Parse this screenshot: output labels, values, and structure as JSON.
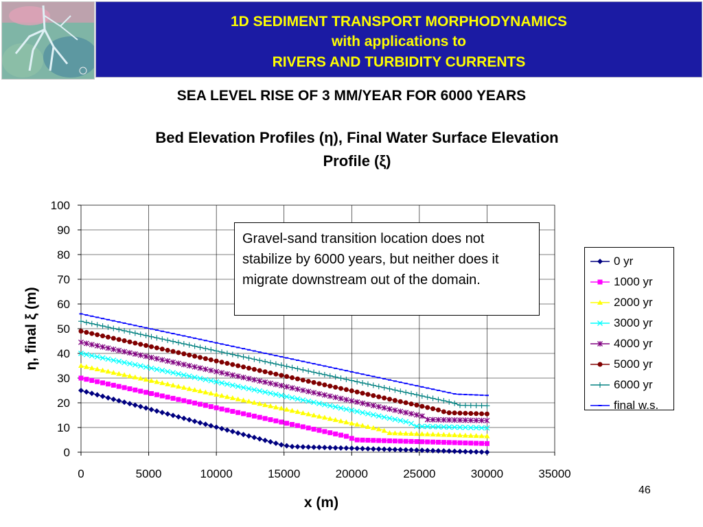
{
  "header": {
    "line1": "1D SEDIMENT TRANSPORT MORPHODYNAMICS",
    "line2": "with applications to",
    "line3": "RIVERS AND TURBIDITY CURRENTS"
  },
  "section_title": "SEA LEVEL RISE OF 3 MM/YEAR FOR 6000 YEARS",
  "page_number": "46",
  "annotation": "Gravel-sand transition location does not stabilize by 6000 years, but neither does it migrate downstream out of the domain.",
  "colors": {
    "header_bg": "#1b1ba3",
    "header_text": "#ffff00"
  },
  "chart_data": {
    "type": "line",
    "title_line1": "Bed Elevation Profiles (η), Final Water Surface Elevation",
    "title_line2": "Profile (ξ)",
    "xlabel": "x (m)",
    "ylabel": "η, final ξ (m)",
    "xlim": [
      0,
      35000
    ],
    "ylim": [
      0,
      100
    ],
    "xticks": [
      "0",
      "5000",
      "10000",
      "15000",
      "20000",
      "25000",
      "30000",
      "35000"
    ],
    "yticks": [
      "0",
      "10",
      "20",
      "30",
      "40",
      "50",
      "60",
      "70",
      "80",
      "90",
      "100"
    ],
    "grid": true,
    "legend_position": "right",
    "series": [
      {
        "name": "0 yr",
        "color": "#000080",
        "marker": "diamond",
        "points": [
          [
            0,
            25
          ],
          [
            14800,
            3
          ],
          [
            15500,
            2.3
          ],
          [
            30000,
            0
          ]
        ]
      },
      {
        "name": "1000 yr",
        "color": "#ff00ff",
        "marker": "square",
        "points": [
          [
            0,
            30
          ],
          [
            19800,
            6.2
          ],
          [
            20200,
            5
          ],
          [
            30000,
            3.5
          ]
        ]
      },
      {
        "name": "2000 yr",
        "color": "#ffff00",
        "marker": "triangle",
        "points": [
          [
            0,
            35
          ],
          [
            22300,
            9
          ],
          [
            22700,
            7.8
          ],
          [
            30000,
            6.5
          ]
        ]
      },
      {
        "name": "3000 yr",
        "color": "#00ffff",
        "marker": "x",
        "points": [
          [
            0,
            40
          ],
          [
            24300,
            12
          ],
          [
            24700,
            10.5
          ],
          [
            30000,
            9.8
          ]
        ]
      },
      {
        "name": "4000 yr",
        "color": "#800080",
        "marker": "star",
        "points": [
          [
            0,
            44.5
          ],
          [
            25300,
            14.5
          ],
          [
            25600,
            13.2
          ],
          [
            30000,
            12.8
          ]
        ]
      },
      {
        "name": "5000 yr",
        "color": "#800000",
        "marker": "circle",
        "points": [
          [
            0,
            49
          ],
          [
            26500,
            17
          ],
          [
            27000,
            16
          ],
          [
            30000,
            15.5
          ]
        ]
      },
      {
        "name": "6000 yr",
        "color": "#008080",
        "marker": "plus",
        "points": [
          [
            0,
            53
          ],
          [
            27500,
            20
          ],
          [
            28000,
            19
          ],
          [
            30000,
            18.8
          ]
        ]
      },
      {
        "name": "final w.s.",
        "color": "#0000ff",
        "marker": "dash",
        "points": [
          [
            0,
            56
          ],
          [
            27700,
            23.5
          ],
          [
            30000,
            23
          ]
        ]
      }
    ]
  }
}
